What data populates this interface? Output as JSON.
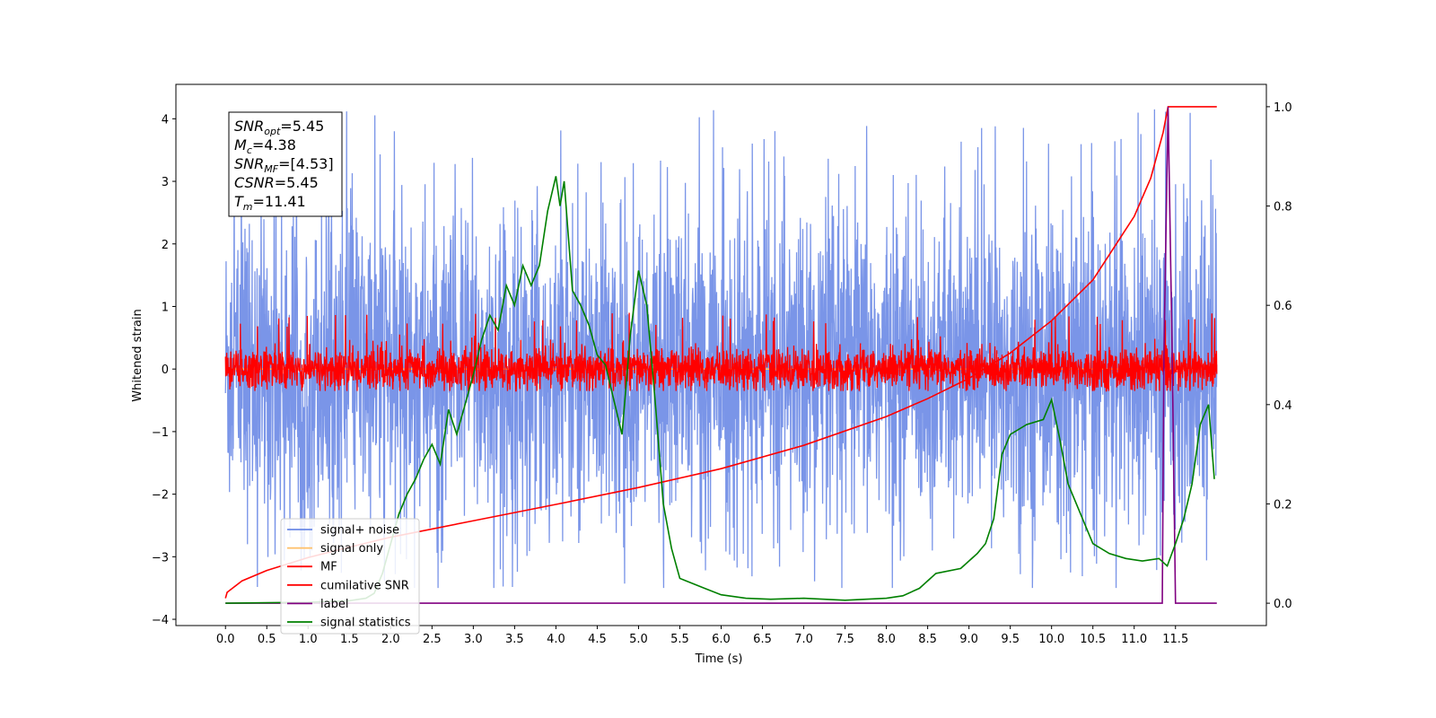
{
  "chart_data": {
    "type": "line",
    "title": "",
    "xlabel": "Time (s)",
    "ylabel": "Whitened strain",
    "y2label": "",
    "xlim": [
      -0.6,
      12.6
    ],
    "ylim": [
      -4.1,
      4.55
    ],
    "y2lim": [
      -0.045,
      1.045
    ],
    "x_ticks": [
      0.0,
      0.5,
      1.0,
      1.5,
      2.0,
      2.5,
      3.0,
      3.5,
      4.0,
      4.5,
      5.0,
      5.5,
      6.0,
      6.5,
      7.0,
      7.5,
      8.0,
      8.5,
      9.0,
      9.5,
      10.0,
      10.5,
      11.0,
      11.5
    ],
    "x_tick_labels": [
      "0.0",
      "0.5",
      "1.0",
      "1.5",
      "2.0",
      "2.5",
      "3.0",
      "3.5",
      "4.0",
      "4.5",
      "5.0",
      "5.5",
      "6.0",
      "6.5",
      "7.0",
      "7.5",
      "8.0",
      "8.5",
      "9.0",
      "9.5",
      "10.0",
      "10.5",
      "11.0",
      "11.5"
    ],
    "y_ticks": [
      -4,
      -3,
      -2,
      -1,
      0,
      1,
      2,
      3,
      4
    ],
    "y_tick_labels": [
      "−4",
      "−3",
      "−2",
      "−1",
      "0",
      "1",
      "2",
      "3",
      "4"
    ],
    "y2_ticks": [
      0.0,
      0.2,
      0.4,
      0.6,
      0.8,
      1.0
    ],
    "y2_tick_labels": [
      "0.0",
      "0.2",
      "0.4",
      "0.6",
      "0.8",
      "1.0"
    ],
    "grid": false,
    "legend_position": "lower-left",
    "annotation": {
      "lines": [
        {
          "var": "SNR",
          "sub": "opt",
          "value": "=5.45"
        },
        {
          "var": "M",
          "sub": "c",
          "value": "=4.38"
        },
        {
          "var": "SNR",
          "sub": "MF",
          "value": "=[4.53]"
        },
        {
          "var": "CSNR",
          "sub": "",
          "value": "=5.45"
        },
        {
          "var": "T",
          "sub": "m",
          "value": "=11.41"
        }
      ]
    },
    "series": [
      {
        "name": "signal+ noise",
        "color": "#6b8ae6",
        "axis": "left",
        "style": "noise",
        "x_range": [
          0.0,
          12.0
        ],
        "envelope": [
          -2.6,
          2.6
        ],
        "peak_max": 4.15,
        "peak_min": -3.5
      },
      {
        "name": "signal only",
        "color": "#ffbf66",
        "axis": "left",
        "style": "flat",
        "x_range": [
          0.0,
          12.0
        ],
        "values": [
          0,
          0
        ]
      },
      {
        "name": "MF",
        "color": "#ff0000",
        "axis": "left",
        "style": "noise",
        "x_range": [
          0.0,
          12.0
        ],
        "envelope": [
          -0.35,
          0.35
        ],
        "peak_max": 0.9,
        "peak_min": -0.35
      },
      {
        "name": "cumilative SNR",
        "color": "#ff0000",
        "axis": "right",
        "x": [
          0.0,
          0.02,
          0.2,
          0.5,
          1.0,
          1.5,
          2.0,
          3.0,
          4.0,
          5.0,
          6.0,
          7.0,
          8.0,
          8.5,
          9.0,
          9.5,
          10.0,
          10.5,
          11.0,
          11.2,
          11.35,
          11.41,
          11.5,
          11.6,
          12.0
        ],
        "y": [
          0.01,
          0.022,
          0.045,
          0.066,
          0.092,
          0.113,
          0.133,
          0.166,
          0.199,
          0.233,
          0.271,
          0.318,
          0.376,
          0.412,
          0.453,
          0.504,
          0.569,
          0.651,
          0.779,
          0.856,
          0.948,
          1.0,
          1.0,
          1.0,
          1.0
        ]
      },
      {
        "name": "label",
        "color": "#800080",
        "axis": "right",
        "x": [
          0.0,
          11.3,
          11.34,
          11.36,
          11.41,
          11.46,
          11.5,
          12.0
        ],
        "y": [
          0.0,
          0.0,
          0.0,
          0.5,
          1.0,
          0.5,
          0.0,
          0.0
        ]
      },
      {
        "name": "signal statistics",
        "color": "#008000",
        "axis": "right",
        "x": [
          0.0,
          0.5,
          1.0,
          1.5,
          1.7,
          1.8,
          1.9,
          2.0,
          2.1,
          2.2,
          2.3,
          2.4,
          2.5,
          2.6,
          2.7,
          2.8,
          2.9,
          3.0,
          3.1,
          3.2,
          3.3,
          3.4,
          3.5,
          3.6,
          3.7,
          3.8,
          3.9,
          4.0,
          4.05,
          4.1,
          4.2,
          4.3,
          4.4,
          4.5,
          4.6,
          4.7,
          4.8,
          4.9,
          5.0,
          5.1,
          5.2,
          5.3,
          5.4,
          5.5,
          5.8,
          6.0,
          6.3,
          6.6,
          7.0,
          7.5,
          8.0,
          8.2,
          8.4,
          8.6,
          8.9,
          9.1,
          9.2,
          9.3,
          9.4,
          9.5,
          9.7,
          9.9,
          10.0,
          10.1,
          10.2,
          10.3,
          10.5,
          10.7,
          10.9,
          11.1,
          11.3,
          11.4,
          11.5,
          11.6,
          11.7,
          11.8,
          11.9,
          11.97
        ],
        "y": [
          0.0,
          0.001,
          0.002,
          0.005,
          0.01,
          0.02,
          0.06,
          0.12,
          0.18,
          0.22,
          0.25,
          0.29,
          0.32,
          0.28,
          0.39,
          0.34,
          0.4,
          0.46,
          0.53,
          0.58,
          0.55,
          0.64,
          0.6,
          0.68,
          0.64,
          0.68,
          0.79,
          0.86,
          0.8,
          0.85,
          0.63,
          0.6,
          0.56,
          0.5,
          0.48,
          0.41,
          0.34,
          0.54,
          0.67,
          0.6,
          0.41,
          0.2,
          0.11,
          0.05,
          0.03,
          0.017,
          0.01,
          0.008,
          0.01,
          0.006,
          0.01,
          0.015,
          0.03,
          0.06,
          0.07,
          0.1,
          0.12,
          0.17,
          0.3,
          0.34,
          0.36,
          0.37,
          0.41,
          0.33,
          0.24,
          0.2,
          0.12,
          0.1,
          0.09,
          0.085,
          0.09,
          0.075,
          0.12,
          0.17,
          0.24,
          0.36,
          0.4,
          0.25
        ]
      }
    ]
  }
}
